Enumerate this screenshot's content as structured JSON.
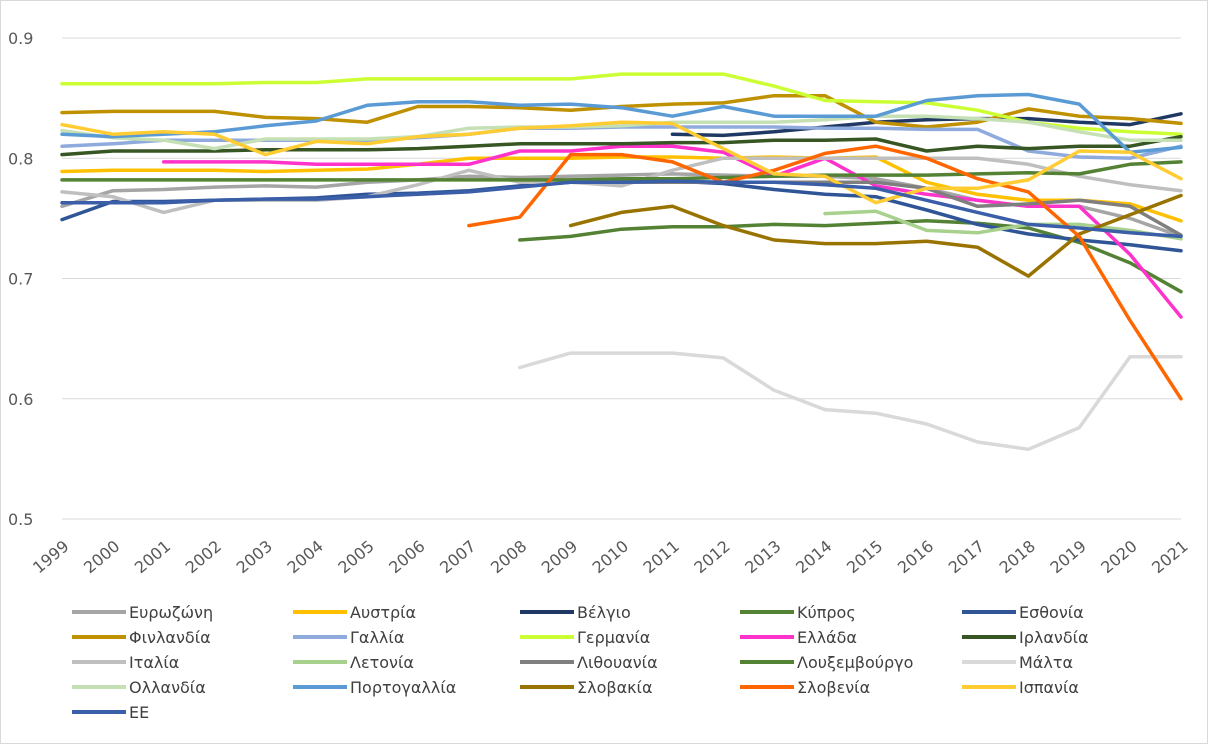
{
  "chart_data": {
    "type": "line",
    "categories": [
      "1999",
      "2000",
      "2001",
      "2002",
      "2003",
      "2004",
      "2005",
      "2006",
      "2007",
      "2008",
      "2009",
      "2010",
      "2011",
      "2012",
      "2013",
      "2014",
      "2015",
      "2016",
      "2017",
      "2018",
      "2019",
      "2020",
      "2021"
    ],
    "ylim": [
      0.5,
      0.9
    ],
    "yticks": [
      0.5,
      0.6,
      0.7,
      0.8,
      0.9
    ],
    "grid": true,
    "series": [
      {
        "name": "Ευρωζώνη",
        "color": "#a5a5a5",
        "values": [
          0.76,
          0.773,
          0.774,
          0.776,
          0.777,
          0.776,
          0.78,
          0.782,
          0.785,
          0.784,
          0.785,
          0.786,
          0.787,
          0.786,
          0.785,
          0.785,
          0.783,
          0.775,
          0.765,
          0.76,
          0.76,
          0.75,
          0.735
        ]
      },
      {
        "name": "Αυστρία",
        "color": "#ffc000",
        "values": [
          0.789,
          0.79,
          0.79,
          0.79,
          0.789,
          0.79,
          0.791,
          0.795,
          0.8,
          0.8,
          0.8,
          0.801,
          0.801,
          0.8,
          0.801,
          0.8,
          0.801,
          0.78,
          0.77,
          0.765,
          0.765,
          0.762,
          0.748
        ]
      },
      {
        "name": "Βέλγιο",
        "color": "#203864",
        "values": [
          null,
          null,
          null,
          null,
          null,
          null,
          null,
          null,
          null,
          null,
          null,
          null,
          0.82,
          0.819,
          0.822,
          0.826,
          0.83,
          0.832,
          0.833,
          0.833,
          0.83,
          0.828,
          0.837
        ]
      },
      {
        "name": "Κύπρος",
        "color": "#548235",
        "values": [
          null,
          null,
          null,
          null,
          null,
          null,
          null,
          null,
          null,
          0.732,
          0.735,
          0.741,
          0.743,
          0.743,
          0.745,
          0.744,
          0.746,
          0.748,
          0.746,
          0.742,
          0.73,
          0.713,
          0.689
        ]
      },
      {
        "name": "Εσθονία",
        "color": "#2f5597",
        "values": [
          0.749,
          0.764,
          0.764,
          0.765,
          0.766,
          0.767,
          0.77,
          0.771,
          0.773,
          0.777,
          0.78,
          0.781,
          0.781,
          0.779,
          0.774,
          0.77,
          0.768,
          0.757,
          0.745,
          0.737,
          0.732,
          0.728,
          0.723
        ]
      },
      {
        "name": "Φινλανδία",
        "color": "#bf9000",
        "values": [
          0.838,
          0.839,
          0.839,
          0.839,
          0.834,
          0.833,
          0.83,
          0.843,
          0.843,
          0.842,
          0.84,
          0.843,
          0.845,
          0.846,
          0.852,
          0.852,
          0.83,
          0.826,
          0.83,
          0.841,
          0.835,
          0.833,
          0.829
        ]
      },
      {
        "name": "Γαλλία",
        "color": "#8faadc",
        "values": [
          0.81,
          0.812,
          0.815,
          0.815,
          0.815,
          0.815,
          0.815,
          0.817,
          0.82,
          0.825,
          0.825,
          0.826,
          0.826,
          0.826,
          0.826,
          0.825,
          0.825,
          0.824,
          0.824,
          0.806,
          0.801,
          0.8,
          0.81
        ]
      },
      {
        "name": "Γερμανία",
        "color": "#ccff33",
        "values": [
          0.862,
          0.862,
          0.862,
          0.862,
          0.863,
          0.863,
          0.866,
          0.866,
          0.866,
          0.866,
          0.866,
          0.87,
          0.87,
          0.87,
          0.86,
          0.848,
          0.847,
          0.846,
          0.84,
          0.83,
          0.825,
          0.822,
          0.82
        ]
      },
      {
        "name": "Ελλάδα",
        "color": "#ff33cc",
        "values": [
          null,
          null,
          0.797,
          0.797,
          0.797,
          0.795,
          0.795,
          0.795,
          0.795,
          0.806,
          0.806,
          0.81,
          0.81,
          0.805,
          0.785,
          0.8,
          0.777,
          0.77,
          0.765,
          0.76,
          0.76,
          0.72,
          0.668
        ]
      },
      {
        "name": "Ιρλανδία",
        "color": "#375623",
        "values": [
          0.803,
          0.806,
          0.806,
          0.806,
          0.807,
          0.807,
          0.807,
          0.808,
          0.81,
          0.812,
          0.812,
          0.812,
          0.813,
          0.813,
          0.815,
          0.815,
          0.816,
          0.806,
          0.81,
          0.808,
          0.81,
          0.81,
          0.818
        ]
      },
      {
        "name": "Ιταλία",
        "color": "#bfbfbf",
        "values": [
          0.772,
          0.768,
          0.755,
          0.765,
          0.765,
          0.765,
          0.768,
          0.778,
          0.79,
          0.78,
          0.78,
          0.777,
          0.79,
          0.8,
          0.8,
          0.8,
          0.8,
          0.8,
          0.8,
          0.795,
          0.785,
          0.778,
          0.773
        ]
      },
      {
        "name": "Λετονία",
        "color": "#a9d18e",
        "values": [
          null,
          null,
          null,
          null,
          null,
          null,
          null,
          null,
          null,
          null,
          null,
          null,
          null,
          null,
          null,
          0.754,
          0.756,
          0.74,
          0.738,
          0.745,
          0.745,
          0.74,
          0.733
        ]
      },
      {
        "name": "Λιθουανία",
        "color": "#7f7f7f",
        "values": [
          null,
          null,
          null,
          null,
          null,
          null,
          null,
          null,
          null,
          null,
          null,
          0.78,
          0.78,
          0.78,
          0.78,
          0.78,
          0.78,
          0.775,
          0.76,
          0.762,
          0.765,
          0.76,
          0.736
        ]
      },
      {
        "name": "Λουξεμβούργο",
        "color": "#548235",
        "values": [
          0.782,
          0.782,
          0.782,
          0.782,
          0.782,
          0.782,
          0.782,
          0.782,
          0.782,
          0.782,
          0.782,
          0.783,
          0.783,
          0.784,
          0.785,
          0.786,
          0.786,
          0.786,
          0.787,
          0.788,
          0.787,
          0.795,
          0.797
        ]
      },
      {
        "name": "Μάλτα",
        "color": "#d9d9d9",
        "values": [
          null,
          null,
          null,
          null,
          null,
          null,
          null,
          null,
          null,
          0.626,
          0.638,
          0.638,
          0.638,
          0.634,
          0.607,
          0.591,
          0.588,
          0.579,
          0.564,
          0.558,
          0.576,
          0.635,
          0.635
        ]
      },
      {
        "name": "Ολλανδία",
        "color": "#c5e0b4",
        "values": [
          0.823,
          0.817,
          0.815,
          0.808,
          0.816,
          0.816,
          0.816,
          0.818,
          0.825,
          0.826,
          0.826,
          0.827,
          0.83,
          0.83,
          0.83,
          0.832,
          0.835,
          0.835,
          0.833,
          0.83,
          0.822,
          0.815,
          0.815
        ]
      },
      {
        "name": "Πορτογαλλία",
        "color": "#5b9bd5",
        "values": [
          0.82,
          0.818,
          0.82,
          0.822,
          0.827,
          0.831,
          0.844,
          0.847,
          0.847,
          0.844,
          0.845,
          0.842,
          0.835,
          0.843,
          0.835,
          0.835,
          0.835,
          0.848,
          0.852,
          0.853,
          0.845,
          0.805,
          0.809
        ]
      },
      {
        "name": "Σλοβακία",
        "color": "#997300",
        "values": [
          null,
          null,
          null,
          null,
          null,
          null,
          null,
          null,
          null,
          null,
          0.744,
          0.755,
          0.76,
          0.744,
          0.732,
          0.729,
          0.729,
          0.731,
          0.726,
          0.702,
          0.737,
          0.753,
          0.769
        ]
      },
      {
        "name": "Σλοβενία",
        "color": "#ff6600",
        "values": [
          null,
          null,
          null,
          null,
          null,
          null,
          null,
          null,
          0.744,
          0.751,
          0.803,
          0.803,
          0.797,
          0.78,
          0.79,
          0.804,
          0.81,
          0.8,
          0.783,
          0.772,
          0.735,
          0.665,
          0.6
        ]
      },
      {
        "name": "Ισπανία",
        "color": "#ffcc33",
        "values": [
          0.828,
          0.82,
          0.822,
          0.82,
          0.803,
          0.814,
          0.812,
          0.818,
          0.82,
          0.825,
          0.827,
          0.83,
          0.829,
          0.808,
          0.787,
          0.785,
          0.763,
          0.775,
          0.775,
          0.782,
          0.806,
          0.805,
          0.783
        ]
      },
      {
        "name": "ΕΕ",
        "color": "#3a5ea8",
        "values": [
          0.763,
          0.763,
          0.763,
          0.765,
          0.766,
          0.766,
          0.768,
          0.77,
          0.772,
          0.776,
          0.78,
          0.78,
          0.781,
          0.78,
          0.78,
          0.778,
          0.775,
          0.765,
          0.755,
          0.745,
          0.742,
          0.738,
          0.735
        ]
      }
    ]
  }
}
